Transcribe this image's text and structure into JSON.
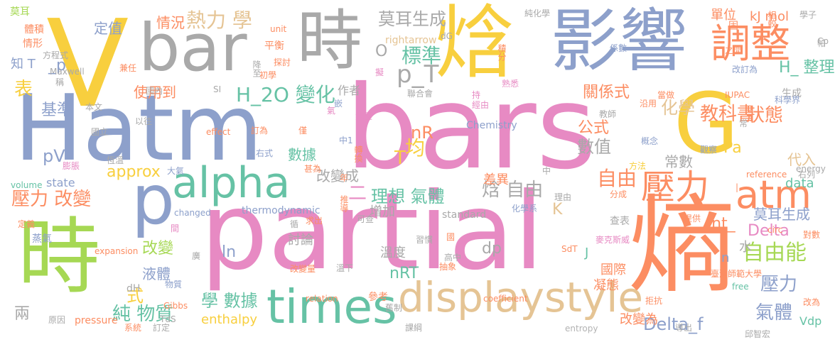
{
  "word_cloud": {
    "palette": {
      "yellow": "#f8cf3e",
      "gray": "#a9a9a9",
      "blue": "#8da0cb",
      "pink": "#e78ac3",
      "orange": "#fc8d62",
      "green": "#a6d854",
      "teal": "#66c2a5",
      "tan": "#e5c494",
      "light_gray": "#b3b3b3"
    },
    "words": [
      {
        "text": "V",
        "color": "yellow"
      },
      {
        "text": "bar",
        "color": "gray"
      },
      {
        "text": "時",
        "color": "gray"
      },
      {
        "text": "焓",
        "color": "yellow"
      },
      {
        "text": "影響",
        "color": "blue"
      },
      {
        "text": "Hatm",
        "color": "blue"
      },
      {
        "text": "bars",
        "color": "pink"
      },
      {
        "text": "G",
        "color": "yellow"
      },
      {
        "text": "partial",
        "color": "pink"
      },
      {
        "text": "熵",
        "color": "orange"
      },
      {
        "text": "p",
        "color": "blue"
      },
      {
        "text": "時",
        "color": "green"
      },
      {
        "text": "alpha",
        "color": "teal"
      },
      {
        "text": "times",
        "color": "teal"
      },
      {
        "text": "displaystyle",
        "color": "tan"
      },
      {
        "text": "調整",
        "color": "orange"
      },
      {
        "text": "壓力",
        "color": "orange"
      },
      {
        "text": "atm",
        "color": "orange"
      },
      {
        "text": "熱力 學",
        "color": "tan"
      },
      {
        "text": "標準",
        "color": "teal"
      },
      {
        "text": "p_T",
        "color": "gray"
      },
      {
        "text": "H_2O 變化",
        "color": "teal"
      },
      {
        "text": "壓力 改變",
        "color": "orange"
      },
      {
        "text": "自由能",
        "color": "green"
      },
      {
        "text": "莫耳生成",
        "color": "gray"
      },
      {
        "text": "狀態",
        "color": "orange"
      },
      {
        "text": "化學",
        "color": "tan"
      },
      {
        "text": "教科書",
        "color": "orange"
      },
      {
        "text": "理想 氣體",
        "color": "teal"
      },
      {
        "text": "焓 自由",
        "color": "gray"
      },
      {
        "text": "均",
        "color": "yellow"
      },
      {
        "text": "nR",
        "color": "orange"
      },
      {
        "text": "純 物質",
        "color": "teal"
      },
      {
        "text": "學 數據",
        "color": "teal"
      },
      {
        "text": "自由",
        "color": "orange"
      },
      {
        "text": "壓力",
        "color": "blue"
      },
      {
        "text": "氣體",
        "color": "blue"
      },
      {
        "text": "Delta_f",
        "color": "blue"
      },
      {
        "text": "莫耳生成",
        "color": "blue"
      },
      {
        "text": "int_",
        "color": "orange"
      },
      {
        "text": "Delta",
        "color": "pink"
      },
      {
        "text": "approx",
        "color": "yellow"
      },
      {
        "text": "pV",
        "color": "blue"
      },
      {
        "text": "基準",
        "color": "blue"
      },
      {
        "text": "表",
        "color": "yellow"
      },
      {
        "text": "式",
        "color": "yellow"
      },
      {
        "text": "改變",
        "color": "green"
      },
      {
        "text": "數值",
        "color": "gray"
      },
      {
        "text": "公式",
        "color": "orange"
      },
      {
        "text": "代入",
        "color": "tan"
      },
      {
        "text": "Pa",
        "color": "yellow"
      },
      {
        "text": "T",
        "color": "yellow"
      },
      {
        "text": "nRT",
        "color": "teal"
      },
      {
        "text": "dp",
        "color": "gray"
      },
      {
        "text": "ln",
        "color": "blue"
      },
      {
        "text": "二",
        "color": "pink"
      },
      {
        "text": "K",
        "color": "tan"
      },
      {
        "text": "J",
        "color": "teal"
      },
      {
        "text": "H_ 整理",
        "color": "teal"
      },
      {
        "text": "kJ mol",
        "color": "orange"
      },
      {
        "text": "關係式",
        "color": "orange"
      },
      {
        "text": "使用到",
        "color": "orange"
      },
      {
        "text": "情況",
        "color": "orange"
      },
      {
        "text": "單位",
        "color": "orange"
      },
      {
        "text": "定值",
        "color": "blue"
      },
      {
        "text": "知 T",
        "color": "blue"
      },
      {
        "text": "_p",
        "color": "blue"
      },
      {
        "text": "O",
        "color": "gray"
      },
      {
        "text": "改變成",
        "color": "gray"
      },
      {
        "text": "數據",
        "color": "teal"
      },
      {
        "text": "常數",
        "color": "gray"
      },
      {
        "text": "溫度",
        "color": "gray"
      },
      {
        "text": "討論",
        "color": "gray"
      },
      {
        "text": "水",
        "color": "gray"
      },
      {
        "text": "n",
        "color": "blue"
      },
      {
        "text": "國際",
        "color": "orange"
      },
      {
        "text": "凝態",
        "color": "orange"
      },
      {
        "text": "改變為",
        "color": "orange"
      },
      {
        "text": "液體",
        "color": "blue"
      },
      {
        "text": "兩",
        "color": "gray"
      },
      {
        "text": "enthalpy",
        "color": "yellow"
      },
      {
        "text": "差異",
        "color": "orange"
      },
      {
        "text": "增加",
        "color": "gray"
      },
      {
        "text": "參考",
        "color": "orange"
      },
      {
        "text": "data",
        "color": "teal"
      },
      {
        "text": "Vdp",
        "color": "teal"
      },
      {
        "text": "state",
        "color": "blue"
      },
      {
        "text": "莫耳",
        "color": "green"
      },
      {
        "text": "體積",
        "color": "orange"
      },
      {
        "text": "情形",
        "color": "orange"
      },
      {
        "text": "作者",
        "color": "gray"
      },
      {
        "text": "Chemistry",
        "color": "blue"
      },
      {
        "text": "standard",
        "color": "gray"
      },
      {
        "text": "thermodynamic",
        "color": "blue"
      },
      {
        "text": "查表",
        "color": "gray"
      },
      {
        "text": "高中",
        "color": "gray"
      },
      {
        "text": "蒸氣",
        "color": "blue"
      },
      {
        "text": "dH",
        "color": "gray"
      },
      {
        "text": "Gibbs",
        "color": "orange"
      },
      {
        "text": "TdS",
        "color": "gray"
      },
      {
        "text": "pressure",
        "color": "orange"
      },
      {
        "text": "entropy",
        "color": "light_gray"
      },
      {
        "text": "rightarrow",
        "color": "tan"
      },
      {
        "text": "Maxwell",
        "color": "gray"
      },
      {
        "text": "coefficient",
        "color": "orange"
      },
      {
        "text": "expansion",
        "color": "orange"
      },
      {
        "text": "effect",
        "color": "orange"
      },
      {
        "text": "relation",
        "color": "orange"
      },
      {
        "text": "volume",
        "color": "teal"
      },
      {
        "text": "changed",
        "color": "blue"
      },
      {
        "text": "reference",
        "color": "orange"
      },
      {
        "text": "IUPAC",
        "color": "orange"
      },
      {
        "text": "energy",
        "color": "gray"
      },
      {
        "text": "free",
        "color": "teal"
      },
      {
        "text": "circ",
        "color": "orange"
      },
      {
        "text": "SdT",
        "color": "orange"
      },
      {
        "text": "unit",
        "color": "orange"
      },
      {
        "text": "SI",
        "color": "gray"
      },
      {
        "text": "dG",
        "color": "gray"
      },
      {
        "text": "臺灣師範大學",
        "color": "orange"
      },
      {
        "text": "邱智宏",
        "color": "gray"
      },
      {
        "text": "麥克斯威",
        "color": "pink"
      },
      {
        "text": "純化學",
        "color": "gray"
      },
      {
        "text": "學子",
        "color": "gray"
      },
      {
        "text": "相較",
        "color": "orange"
      },
      {
        "text": "固",
        "color": "orange"
      },
      {
        "text": "帕",
        "color": "gray"
      },
      {
        "text": "之間",
        "color": "orange"
      },
      {
        "text": "生成",
        "color": "gray"
      },
      {
        "text": "改訂為",
        "color": "blue"
      },
      {
        "text": "沿用",
        "color": "orange"
      },
      {
        "text": "當做",
        "color": "orange"
      },
      {
        "text": "科學界",
        "color": "blue"
      },
      {
        "text": "常",
        "color": "gray"
      },
      {
        "text": "觀察",
        "color": "blue"
      },
      {
        "text": "對數",
        "color": "orange"
      },
      {
        "text": "改為",
        "color": "orange"
      },
      {
        "text": "右列",
        "color": "gray"
      },
      {
        "text": "教師",
        "color": "gray"
      },
      {
        "text": "概念",
        "color": "blue"
      },
      {
        "text": "方法",
        "color": "yellow"
      },
      {
        "text": "提供",
        "color": "orange"
      },
      {
        "text": "分成",
        "color": "orange"
      },
      {
        "text": "理由",
        "color": "gray"
      },
      {
        "text": "化學系",
        "color": "blue"
      },
      {
        "text": "拒抗",
        "color": "orange"
      },
      {
        "text": "導出",
        "color": "gray"
      },
      {
        "text": "Cp",
        "color": "gray"
      },
      {
        "text": "係數",
        "color": "blue"
      },
      {
        "text": "積分",
        "color": "orange"
      },
      {
        "text": "熟悉",
        "color": "pink"
      },
      {
        "text": "經由",
        "color": "pink"
      },
      {
        "text": "持",
        "color": "pink"
      },
      {
        "text": "聯合會",
        "color": "gray"
      },
      {
        "text": "擬",
        "color": "pink"
      },
      {
        "text": "轉換",
        "color": "orange"
      },
      {
        "text": "中1",
        "color": "blue"
      },
      {
        "text": "中",
        "color": "gray"
      },
      {
        "text": "可查",
        "color": "gray"
      },
      {
        "text": "推導",
        "color": "orange"
      },
      {
        "text": "求出",
        "color": "orange"
      },
      {
        "text": "循",
        "color": "gray"
      },
      {
        "text": "溫下",
        "color": "gray"
      },
      {
        "text": "習慣",
        "color": "gray"
      },
      {
        "text": "國",
        "color": "orange"
      },
      {
        "text": "抽象",
        "color": "orange"
      },
      {
        "text": "舊制",
        "color": "gray"
      },
      {
        "text": "課綱",
        "color": "gray"
      },
      {
        "text": "系統",
        "color": "orange"
      },
      {
        "text": "訂定",
        "color": "gray"
      },
      {
        "text": "原因",
        "color": "gray"
      },
      {
        "text": "物質",
        "color": "blue"
      },
      {
        "text": "大氣",
        "color": "blue"
      },
      {
        "text": "恆溫",
        "color": "gray"
      },
      {
        "text": "甚為",
        "color": "orange"
      },
      {
        "text": "右式",
        "color": "blue"
      },
      {
        "text": "僅",
        "color": "orange"
      },
      {
        "text": "訂為",
        "color": "orange"
      },
      {
        "text": "氣壓",
        "color": "pink"
      },
      {
        "text": "嵌",
        "color": "blue"
      },
      {
        "text": "年",
        "color": "orange"
      },
      {
        "text": "本文",
        "color": "gray"
      },
      {
        "text": "以往",
        "color": "gray"
      },
      {
        "text": "國立",
        "color": "gray"
      },
      {
        "text": "膨脹",
        "color": "pink"
      },
      {
        "text": "定義",
        "color": "orange"
      },
      {
        "text": "國內",
        "color": "gray"
      },
      {
        "text": "初學",
        "color": "orange"
      },
      {
        "text": "探討",
        "color": "orange"
      },
      {
        "text": "平衡",
        "color": "orange"
      },
      {
        "text": "降至",
        "color": "gray"
      },
      {
        "text": "方程式",
        "color": "gray"
      },
      {
        "text": "兼任",
        "color": "orange"
      },
      {
        "text": "稱",
        "color": "gray"
      },
      {
        "text": "氣",
        "color": "pink"
      },
      {
        "text": "間",
        "color": "pink"
      },
      {
        "text": "廣",
        "color": "gray"
      },
      {
        "text": "改變量",
        "color": "orange"
      },
      {
        "text": "|",
        "color": "orange"
      }
    ]
  }
}
